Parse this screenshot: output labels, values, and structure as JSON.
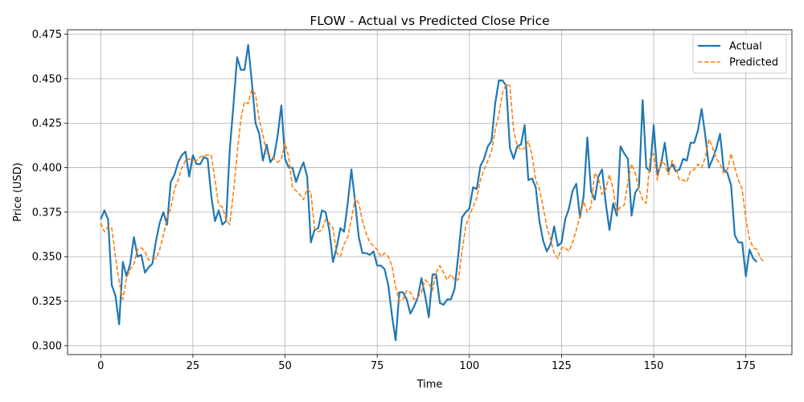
{
  "chart_data": {
    "type": "line",
    "title": "FLOW - Actual vs Predicted Close Price",
    "xlabel": "Time",
    "ylabel": "Price (USD)",
    "xlim": [
      -9,
      187.5
    ],
    "ylim": [
      0.295,
      0.4775
    ],
    "xticks": [
      0,
      25,
      50,
      75,
      100,
      125,
      150,
      175
    ],
    "yticks": [
      0.3,
      0.325,
      0.35,
      0.375,
      0.4,
      0.425,
      0.45,
      0.475
    ],
    "ytick_labels": [
      "0.300",
      "0.325",
      "0.350",
      "0.375",
      "0.400",
      "0.425",
      "0.450",
      "0.475"
    ],
    "grid": true,
    "legend_position": "upper right",
    "series": [
      {
        "name": "Actual",
        "color": "#1f77b4",
        "style": "solid",
        "x_start": 0,
        "values": [
          0.371,
          0.376,
          0.371,
          0.334,
          0.328,
          0.312,
          0.347,
          0.339,
          0.346,
          0.361,
          0.35,
          0.351,
          0.341,
          0.344,
          0.346,
          0.359,
          0.369,
          0.375,
          0.368,
          0.392,
          0.396,
          0.403,
          0.407,
          0.409,
          0.395,
          0.407,
          0.402,
          0.402,
          0.406,
          0.405,
          0.384,
          0.37,
          0.376,
          0.368,
          0.37,
          0.41,
          0.435,
          0.462,
          0.455,
          0.455,
          0.469,
          0.448,
          0.425,
          0.419,
          0.404,
          0.413,
          0.403,
          0.406,
          0.418,
          0.435,
          0.405,
          0.4,
          0.4,
          0.392,
          0.398,
          0.403,
          0.395,
          0.358,
          0.365,
          0.366,
          0.376,
          0.375,
          0.365,
          0.347,
          0.355,
          0.366,
          0.364,
          0.38,
          0.399,
          0.381,
          0.361,
          0.352,
          0.352,
          0.351,
          0.353,
          0.345,
          0.345,
          0.343,
          0.334,
          0.317,
          0.303,
          0.33,
          0.33,
          0.326,
          0.318,
          0.322,
          0.327,
          0.338,
          0.328,
          0.316,
          0.34,
          0.34,
          0.324,
          0.323,
          0.326,
          0.326,
          0.332,
          0.351,
          0.372,
          0.375,
          0.377,
          0.389,
          0.388,
          0.401,
          0.405,
          0.412,
          0.415,
          0.436,
          0.449,
          0.449,
          0.446,
          0.411,
          0.405,
          0.412,
          0.413,
          0.424,
          0.393,
          0.394,
          0.389,
          0.37,
          0.359,
          0.353,
          0.357,
          0.367,
          0.356,
          0.358,
          0.371,
          0.377,
          0.387,
          0.391,
          0.372,
          0.384,
          0.417,
          0.387,
          0.382,
          0.395,
          0.399,
          0.38,
          0.365,
          0.38,
          0.373,
          0.412,
          0.408,
          0.405,
          0.373,
          0.386,
          0.389,
          0.438,
          0.4,
          0.398,
          0.424,
          0.396,
          0.402,
          0.414,
          0.398,
          0.402,
          0.398,
          0.399,
          0.405,
          0.404,
          0.414,
          0.414,
          0.421,
          0.433,
          0.418,
          0.4,
          0.405,
          0.411,
          0.419,
          0.399,
          0.397,
          0.39,
          0.362,
          0.358,
          0.358,
          0.339,
          0.354,
          0.349,
          0.347
        ]
      },
      {
        "name": "Predicted",
        "color": "#ff7f0e",
        "style": "dashed",
        "x_start": 0,
        "values": [
          0.369,
          0.364,
          0.367,
          0.366,
          0.35,
          0.336,
          0.326,
          0.338,
          0.343,
          0.346,
          0.354,
          0.355,
          0.353,
          0.348,
          0.349,
          0.349,
          0.354,
          0.362,
          0.372,
          0.377,
          0.388,
          0.393,
          0.4,
          0.404,
          0.405,
          0.404,
          0.404,
          0.406,
          0.407,
          0.407,
          0.407,
          0.393,
          0.379,
          0.378,
          0.371,
          0.368,
          0.386,
          0.408,
          0.427,
          0.437,
          0.436,
          0.444,
          0.441,
          0.427,
          0.418,
          0.408,
          0.407,
          0.405,
          0.403,
          0.405,
          0.414,
          0.406,
          0.389,
          0.387,
          0.385,
          0.382,
          0.388,
          0.386,
          0.366,
          0.364,
          0.365,
          0.371,
          0.369,
          0.366,
          0.352,
          0.35,
          0.357,
          0.361,
          0.371,
          0.383,
          0.38,
          0.37,
          0.363,
          0.358,
          0.356,
          0.354,
          0.35,
          0.352,
          0.35,
          0.345,
          0.333,
          0.325,
          0.326,
          0.331,
          0.33,
          0.326,
          0.327,
          0.33,
          0.337,
          0.335,
          0.331,
          0.341,
          0.345,
          0.341,
          0.337,
          0.34,
          0.337,
          0.337,
          0.353,
          0.367,
          0.373,
          0.378,
          0.383,
          0.393,
          0.399,
          0.404,
          0.409,
          0.421,
          0.43,
          0.442,
          0.447,
          0.446,
          0.421,
          0.412,
          0.41,
          0.411,
          0.415,
          0.407,
          0.393,
          0.388,
          0.378,
          0.367,
          0.36,
          0.352,
          0.349,
          0.355,
          0.355,
          0.353,
          0.358,
          0.365,
          0.373,
          0.381,
          0.375,
          0.378,
          0.397,
          0.394,
          0.385,
          0.388,
          0.396,
          0.388,
          0.375,
          0.378,
          0.379,
          0.392,
          0.402,
          0.397,
          0.388,
          0.382,
          0.38,
          0.405,
          0.408,
          0.393,
          0.404,
          0.402,
          0.396,
          0.404,
          0.4,
          0.393,
          0.393,
          0.392,
          0.398,
          0.399,
          0.402,
          0.4,
          0.406,
          0.416,
          0.411,
          0.405,
          0.402,
          0.397,
          0.399,
          0.408,
          0.4,
          0.393,
          0.388,
          0.371,
          0.36,
          0.355,
          0.354,
          0.349,
          0.347
        ]
      }
    ]
  }
}
